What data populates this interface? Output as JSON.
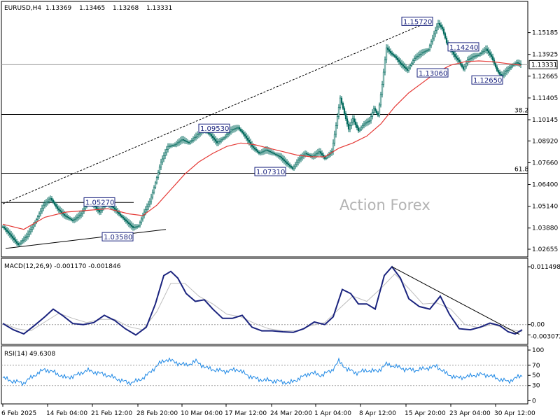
{
  "chart_data": {
    "type": "candlestick",
    "symbol_header": "EURUSD,H4",
    "ohlc_header": [
      "1.13369",
      "1.13465",
      "1.13268",
      "1.13331"
    ],
    "watermark": "Action Forex",
    "current_price": "1.13331",
    "price_axis": {
      "ylim": [
        1.0225,
        1.1695
      ],
      "ticks": [
        "1.15185",
        "1.13925",
        "1.12665",
        "1.11405",
        "1.10145",
        "1.08920",
        "1.07660",
        "1.06400",
        "1.05140",
        "1.03880",
        "1.02655"
      ]
    },
    "x_ticks": [
      "6 Feb 2025",
      "14 Feb 04:00",
      "21 Feb 12:00",
      "28 Feb 20:00",
      "10 Mar 04:00",
      "17 Mar 12:00",
      "24 Mar 20:00",
      "1 Apr 04:00",
      "8 Apr 12:00",
      "15 Apr 20:00",
      "23 Apr 04:00",
      "30 Apr 12:00"
    ],
    "price_path": [
      [
        0,
        1.0395
      ],
      [
        10,
        1.035
      ],
      [
        22,
        1.029
      ],
      [
        34,
        1.034
      ],
      [
        46,
        1.042
      ],
      [
        58,
        1.052
      ],
      [
        68,
        1.056
      ],
      [
        78,
        1.05
      ],
      [
        88,
        1.046
      ],
      [
        100,
        1.043
      ],
      [
        112,
        1.047
      ],
      [
        122,
        1.054
      ],
      [
        130,
        1.052
      ],
      [
        138,
        1.048
      ],
      [
        148,
        1.053
      ],
      [
        158,
        1.0505
      ],
      [
        168,
        1.046
      ],
      [
        178,
        1.042
      ],
      [
        186,
        1.039
      ],
      [
        194,
        1.04
      ],
      [
        202,
        1.048
      ],
      [
        210,
        1.054
      ],
      [
        218,
        1.065
      ],
      [
        226,
        1.077
      ],
      [
        236,
        1.086
      ],
      [
        246,
        1.087
      ],
      [
        256,
        1.09
      ],
      [
        266,
        1.088
      ],
      [
        276,
        1.092
      ],
      [
        286,
        1.0955
      ],
      [
        296,
        1.093
      ],
      [
        306,
        1.088
      ],
      [
        316,
        1.091
      ],
      [
        326,
        1.0955
      ],
      [
        336,
        1.097
      ],
      [
        346,
        1.092
      ],
      [
        356,
        1.086
      ],
      [
        366,
        1.082
      ],
      [
        376,
        1.084
      ],
      [
        386,
        1.082
      ],
      [
        396,
        1.08
      ],
      [
        406,
        1.076
      ],
      [
        414,
        1.0731
      ],
      [
        422,
        1.078
      ],
      [
        432,
        1.082
      ],
      [
        442,
        1.08
      ],
      [
        452,
        1.083
      ],
      [
        460,
        1.079
      ],
      [
        470,
        1.083
      ],
      [
        476,
        1.098
      ],
      [
        482,
        1.114
      ],
      [
        488,
        1.105
      ],
      [
        494,
        1.096
      ],
      [
        500,
        1.102
      ],
      [
        508,
        1.095
      ],
      [
        516,
        1.099
      ],
      [
        524,
        1.101
      ],
      [
        530,
        1.108
      ],
      [
        536,
        1.104
      ],
      [
        542,
        1.122
      ],
      [
        548,
        1.143
      ],
      [
        554,
        1.14
      ],
      [
        560,
        1.138
      ],
      [
        568,
        1.134
      ],
      [
        578,
        1.13
      ],
      [
        588,
        1.137
      ],
      [
        598,
        1.14
      ],
      [
        608,
        1.142
      ],
      [
        616,
        1.151
      ],
      [
        622,
        1.1572
      ],
      [
        628,
        1.154
      ],
      [
        634,
        1.146
      ],
      [
        640,
        1.142
      ],
      [
        646,
        1.138
      ],
      [
        652,
        1.135
      ],
      [
        658,
        1.1306
      ],
      [
        664,
        1.136
      ],
      [
        672,
        1.138
      ],
      [
        680,
        1.139
      ],
      [
        690,
        1.1424
      ],
      [
        698,
        1.138
      ],
      [
        706,
        1.13
      ],
      [
        712,
        1.1265
      ],
      [
        720,
        1.13
      ],
      [
        728,
        1.133
      ],
      [
        734,
        1.1345
      ],
      [
        740,
        1.1333
      ]
    ],
    "ma_path": [
      [
        0,
        1.041
      ],
      [
        30,
        1.038
      ],
      [
        60,
        1.045
      ],
      [
        90,
        1.048
      ],
      [
        120,
        1.049
      ],
      [
        150,
        1.05
      ],
      [
        180,
        1.047
      ],
      [
        200,
        1.046
      ],
      [
        220,
        1.052
      ],
      [
        240,
        1.061
      ],
      [
        260,
        1.07
      ],
      [
        280,
        1.077
      ],
      [
        300,
        1.082
      ],
      [
        320,
        1.086
      ],
      [
        340,
        1.088
      ],
      [
        360,
        1.087
      ],
      [
        380,
        1.085
      ],
      [
        400,
        1.083
      ],
      [
        420,
        1.081
      ],
      [
        440,
        1.08
      ],
      [
        460,
        1.08
      ],
      [
        480,
        1.085
      ],
      [
        500,
        1.088
      ],
      [
        520,
        1.092
      ],
      [
        540,
        1.099
      ],
      [
        560,
        1.109
      ],
      [
        580,
        1.117
      ],
      [
        600,
        1.123
      ],
      [
        620,
        1.129
      ],
      [
        640,
        1.133
      ],
      [
        660,
        1.135
      ],
      [
        680,
        1.1355
      ],
      [
        700,
        1.135
      ],
      [
        720,
        1.134
      ],
      [
        740,
        1.133
      ]
    ],
    "annotations": [
      {
        "text": "1.15720",
        "price": 1.1572,
        "at": 622
      },
      {
        "text": "1.14240",
        "price": 1.1424,
        "at": 690
      },
      {
        "text": "1.13060",
        "price": 1.1306,
        "at": 658
      },
      {
        "text": "1.12650",
        "price": 1.1265,
        "at": 712
      },
      {
        "text": "1.09530",
        "price": 1.0953,
        "at": 286
      },
      {
        "text": "1.07310",
        "price": 1.0731,
        "at": 414
      },
      {
        "text": "1.05270",
        "price": 1.0527,
        "at": 138
      },
      {
        "text": "1.03580",
        "price": 1.0358,
        "at": 186
      }
    ],
    "levels": [
      {
        "label": "38.2",
        "price": 1.1045
      },
      {
        "label": "61.8",
        "price": 1.0705
      }
    ],
    "macd": {
      "label": "MACD(12,26,9) -0.001170 -0.001846",
      "ylim": [
        -0.0037,
        0.0127
      ],
      "ticks": [
        "0.011498",
        "0.00",
        "-0.003072"
      ],
      "main": [
        [
          0,
          0.0002
        ],
        [
          15,
          -0.001
        ],
        [
          30,
          -0.0018
        ],
        [
          45,
          -0.0002
        ],
        [
          60,
          0.0015
        ],
        [
          72,
          0.003
        ],
        [
          85,
          0.0018
        ],
        [
          100,
          0.0002
        ],
        [
          115,
          0.0
        ],
        [
          130,
          0.0004
        ],
        [
          145,
          0.0018
        ],
        [
          160,
          0.0008
        ],
        [
          175,
          -0.0008
        ],
        [
          190,
          -0.002
        ],
        [
          205,
          -0.0005
        ],
        [
          218,
          0.004
        ],
        [
          230,
          0.0095
        ],
        [
          240,
          0.0103
        ],
        [
          250,
          0.009
        ],
        [
          262,
          0.006
        ],
        [
          275,
          0.0045
        ],
        [
          288,
          0.0048
        ],
        [
          300,
          0.003
        ],
        [
          314,
          0.0012
        ],
        [
          328,
          0.0012
        ],
        [
          342,
          0.0018
        ],
        [
          356,
          -0.0005
        ],
        [
          370,
          -0.0012
        ],
        [
          385,
          -0.0012
        ],
        [
          400,
          -0.0014
        ],
        [
          415,
          -0.0015
        ],
        [
          430,
          -0.0008
        ],
        [
          445,
          0.0005
        ],
        [
          460,
          0.0
        ],
        [
          472,
          0.0015
        ],
        [
          485,
          0.0068
        ],
        [
          497,
          0.006
        ],
        [
          508,
          0.004
        ],
        [
          520,
          0.004
        ],
        [
          532,
          0.003
        ],
        [
          545,
          0.0095
        ],
        [
          556,
          0.0112
        ],
        [
          568,
          0.009
        ],
        [
          580,
          0.005
        ],
        [
          595,
          0.0035
        ],
        [
          610,
          0.003
        ],
        [
          625,
          0.0055
        ],
        [
          638,
          0.002
        ],
        [
          652,
          -0.0008
        ],
        [
          668,
          -0.001
        ],
        [
          682,
          -0.0005
        ],
        [
          696,
          0.0003
        ],
        [
          710,
          -0.0002
        ],
        [
          722,
          -0.0014
        ],
        [
          732,
          -0.0018
        ],
        [
          742,
          -0.001
        ]
      ],
      "signal": [
        [
          0,
          0.0003
        ],
        [
          20,
          -0.0008
        ],
        [
          40,
          -0.0012
        ],
        [
          60,
          0.0005
        ],
        [
          80,
          0.0022
        ],
        [
          100,
          0.0012
        ],
        [
          120,
          0.0004
        ],
        [
          140,
          0.001
        ],
        [
          160,
          0.001
        ],
        [
          180,
          -0.0004
        ],
        [
          200,
          -0.001
        ],
        [
          220,
          0.0025
        ],
        [
          240,
          0.008
        ],
        [
          260,
          0.008
        ],
        [
          280,
          0.0055
        ],
        [
          300,
          0.004
        ],
        [
          320,
          0.002
        ],
        [
          340,
          0.0015
        ],
        [
          360,
          0.0002
        ],
        [
          380,
          -0.0008
        ],
        [
          400,
          -0.0012
        ],
        [
          420,
          -0.0012
        ],
        [
          440,
          -0.0002
        ],
        [
          460,
          0.0004
        ],
        [
          480,
          0.003
        ],
        [
          500,
          0.0055
        ],
        [
          520,
          0.0045
        ],
        [
          540,
          0.007
        ],
        [
          560,
          0.0098
        ],
        [
          580,
          0.007
        ],
        [
          600,
          0.004
        ],
        [
          620,
          0.0042
        ],
        [
          640,
          0.003
        ],
        [
          660,
          0.0
        ],
        [
          680,
          -0.0006
        ],
        [
          700,
          0.0
        ],
        [
          720,
          -0.0008
        ],
        [
          742,
          -0.0014
        ]
      ]
    },
    "rsi": {
      "label": "RSI(14) 49.6308",
      "ylim": [
        -5,
        107
      ],
      "ticks": [
        "100",
        "70",
        "50",
        "30",
        "0"
      ],
      "values": [
        [
          0,
          45
        ],
        [
          15,
          38
        ],
        [
          30,
          35
        ],
        [
          45,
          50
        ],
        [
          60,
          62
        ],
        [
          75,
          55
        ],
        [
          90,
          45
        ],
        [
          105,
          50
        ],
        [
          120,
          60
        ],
        [
          135,
          55
        ],
        [
          150,
          50
        ],
        [
          165,
          42
        ],
        [
          180,
          35
        ],
        [
          195,
          40
        ],
        [
          210,
          55
        ],
        [
          222,
          72
        ],
        [
          235,
          82
        ],
        [
          248,
          75
        ],
        [
          262,
          70
        ],
        [
          276,
          78
        ],
        [
          290,
          65
        ],
        [
          305,
          60
        ],
        [
          320,
          58
        ],
        [
          335,
          62
        ],
        [
          350,
          50
        ],
        [
          365,
          42
        ],
        [
          380,
          40
        ],
        [
          395,
          38
        ],
        [
          410,
          35
        ],
        [
          425,
          45
        ],
        [
          440,
          55
        ],
        [
          455,
          50
        ],
        [
          470,
          60
        ],
        [
          480,
          78
        ],
        [
          492,
          62
        ],
        [
          505,
          55
        ],
        [
          520,
          60
        ],
        [
          535,
          58
        ],
        [
          548,
          72
        ],
        [
          560,
          68
        ],
        [
          575,
          62
        ],
        [
          590,
          60
        ],
        [
          605,
          64
        ],
        [
          620,
          68
        ],
        [
          635,
          52
        ],
        [
          650,
          45
        ],
        [
          665,
          48
        ],
        [
          680,
          52
        ],
        [
          695,
          50
        ],
        [
          710,
          42
        ],
        [
          722,
          38
        ],
        [
          732,
          44
        ],
        [
          742,
          50
        ]
      ]
    }
  }
}
